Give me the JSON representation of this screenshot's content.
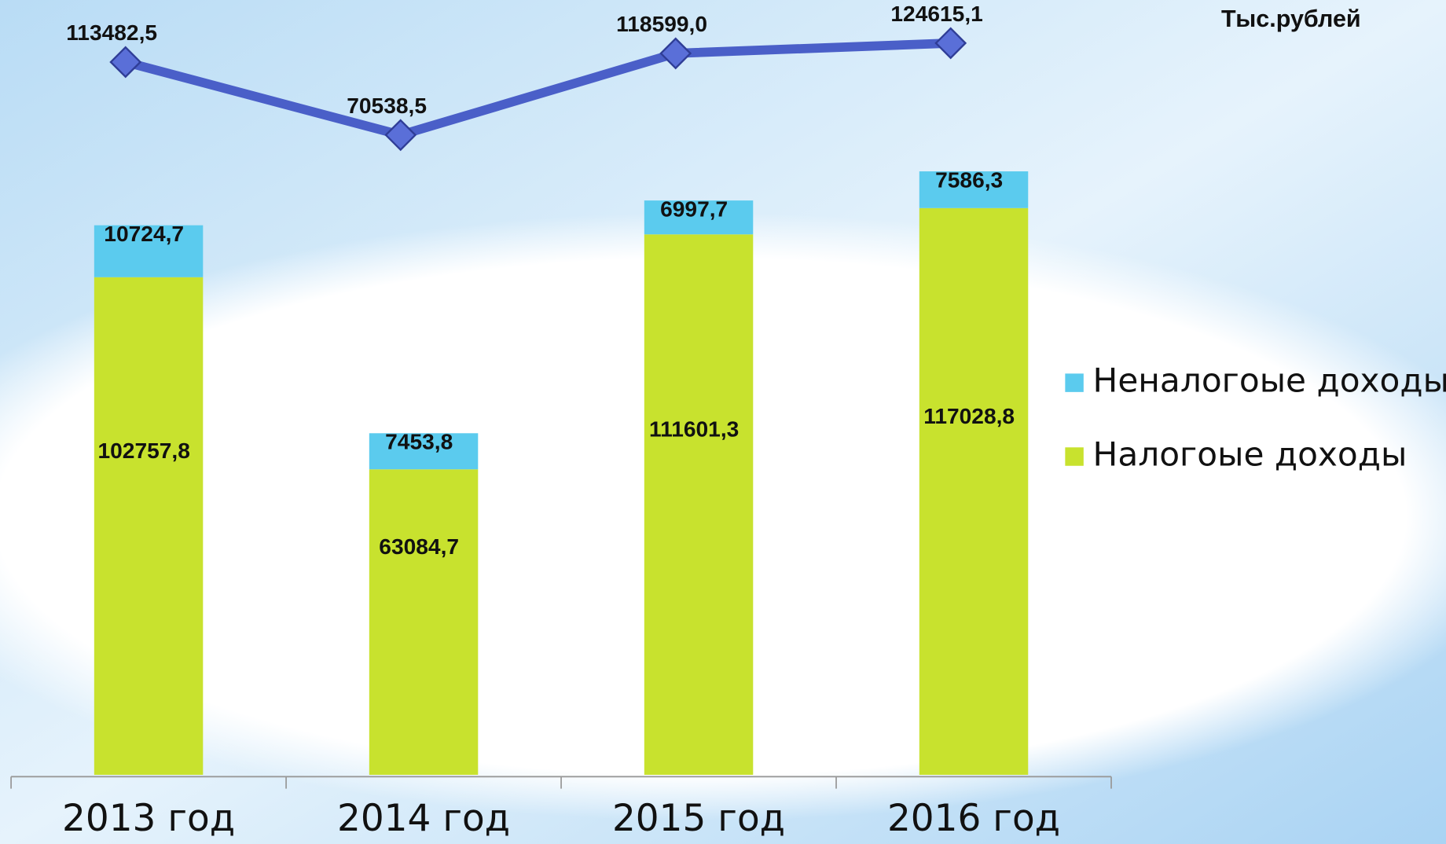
{
  "chart_data": {
    "type": "bar",
    "unit_label": "Тыс.рублей",
    "categories": [
      "2013 год",
      "2014 год",
      "2015 год",
      "2016 год"
    ],
    "stacked": true,
    "ylim": [
      0,
      160000
    ],
    "y2lim": [
      -306000,
      150000
    ],
    "legend": "right",
    "series": [
      {
        "name": "Налогоые доходы",
        "color": "#c8e22e",
        "values": [
          102757.8,
          63084.7,
          111601.3,
          117028.8
        ],
        "value_labels": [
          "102757,8",
          "63084,7",
          "111601,3",
          "117028,8"
        ]
      },
      {
        "name": "Неналогоые доходы",
        "color": "#5bcbee",
        "values": [
          10724.7,
          7453.8,
          6997.7,
          7586.3
        ],
        "value_labels": [
          "10724,7",
          "7453,8",
          "6997,7",
          "7586,3"
        ]
      },
      {
        "type": "line",
        "axis": "y2",
        "color": "#4a5fc8",
        "values": [
          113482.5,
          70538.5,
          118599.0,
          124615.1
        ],
        "value_labels": [
          "113482,5",
          "70538,5",
          "118599,0",
          "124615,1"
        ]
      }
    ]
  }
}
